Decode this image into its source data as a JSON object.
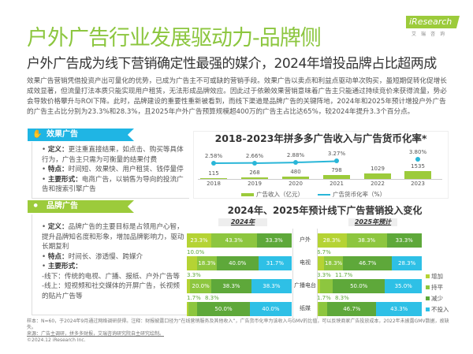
{
  "header": {
    "title": "户外广告行业发展驱动力-品牌侧",
    "subtitle": "户外广告成为线下营销确定性最强的媒介，2024年增投品牌占比超两成",
    "logo": "iResearch",
    "logo_sub": "艾瑞咨询"
  },
  "intro": "效果广告营销凭借投资产出可量化的优势，已成为广告主不可或缺的营销手段。效果广告以卖点和利益点驱动单次购买，虽短期促转化促增长成效显著，但流量打法本质只能实现用户租赁，无法形成品牌效应。因此过于依赖效果营销意味着广告主只能通过持续竞价来获得流量，势必会导致价格攀升与ROI下降。此时，品牌建设的重要性重新被看到，而线下渠道是品牌广告的关键阵地，2024年和2025年预计增投户外广告的广告主占比分别为23.3%和28.3%，且2025年户外广告预算规模超400万的广告主占比达65%，较2024年提升3.3个百分点。",
  "effect": {
    "label": "效果广告",
    "icon": "handshake-icon",
    "color": "#1fb5e4",
    "items": [
      {
        "k": "定义：",
        "v": "更注重直接结果，如点击、购买等具体行为，广告主只需为可衡量的结果付费"
      },
      {
        "k": "特点：",
        "v": "时间短、效果快、用户租赁、钱停量停"
      },
      {
        "k": "主要形式：",
        "v": "电商广告，以销售为导向的投流广告和搜索引擎广告"
      }
    ]
  },
  "brand": {
    "label": "品牌广告",
    "icon": "share-nodes-icon",
    "color": "#9ccb3b",
    "items": [
      {
        "k": "定义：",
        "v": "品牌广告的主要目标是占领用户心智，提升品牌知名度和形象，增加品牌影响力，驱动长期复利"
      },
      {
        "k": "特点：",
        "v": "时间长、渗透慢、跨媒介"
      },
      {
        "k": "主要形式：",
        "v": ""
      }
    ],
    "lines": [
      "-线下：传统的电视、广播、报纸、户外广告等",
      "-线上：短视频和社交媒体的开屏广告，长视频的贴片广告等"
    ]
  },
  "chart_data": [
    {
      "type": "bar",
      "title": "2018-2023年拼多多广告收入与广告货币化率*",
      "categories": [
        "2018",
        "2019",
        "2020",
        "2021",
        "2022",
        "2023"
      ],
      "series": [
        {
          "name": "广告收入（亿元）",
          "type": "bar",
          "values": [
            115,
            268,
            480,
            798,
            1029,
            1535
          ],
          "color": "#9ccb3b"
        },
        {
          "name": "广告货币化率（%）",
          "type": "line",
          "values": [
            2.58,
            2.66,
            2.88,
            3.27,
            null,
            3.8
          ],
          "labels": [
            "2.58%",
            "2.66%",
            "2.88%",
            "3.27%",
            "",
            "3.80%"
          ],
          "color": "#29b6d8"
        }
      ]
    },
    {
      "type": "bar",
      "stacked": true,
      "horizontal": true,
      "title": "2024年、2025年预计线下广告营销投入变化",
      "panels": [
        "2024年",
        "2025年预计"
      ],
      "categories": [
        "户外",
        "电视",
        "广播电台",
        "纸媒"
      ],
      "legend": [
        {
          "name": "增加",
          "color": "#b5d334"
        },
        {
          "name": "持平",
          "color": "#8dc63f"
        },
        {
          "name": "减少",
          "color": "#5ea83a"
        },
        {
          "name": "不投入",
          "color": "#2ec0e6"
        }
      ],
      "values_2024": [
        [
          23.3,
          43.3,
          33.3,
          0
        ],
        [
          10.0,
          18.3,
          40.0,
          31.7
        ],
        [
          3.3,
          20.0,
          38.3,
          38.3
        ],
        [
          1.7,
          8.3,
          50.0,
          40.0
        ]
      ],
      "values_2025": [
        [
          28.3,
          38.3,
          33.3,
          0
        ],
        [
          6.7,
          18.3,
          46.7,
          28.3
        ],
        [
          3.3,
          11.7,
          50.0,
          35.0
        ],
        [
          1.7,
          8.3,
          46.7,
          43.3
        ]
      ],
      "legend_position": "right"
    }
  ],
  "footer": {
    "note": "样本：N=60，于2024年9月通过网络调研获得。注释：财报披露口径为“在线营销服务及其他收入”，广告货币化率为该收入与GMV的比值，可以反映商家广告投放成本，2022年未披露GMV数据，故缺失。",
    "source": "来源：广告主调研，拼多多财报，艾瑞咨询研究院自主研究绘制。",
    "copyright": "©2024.12 iResearch Inc."
  }
}
